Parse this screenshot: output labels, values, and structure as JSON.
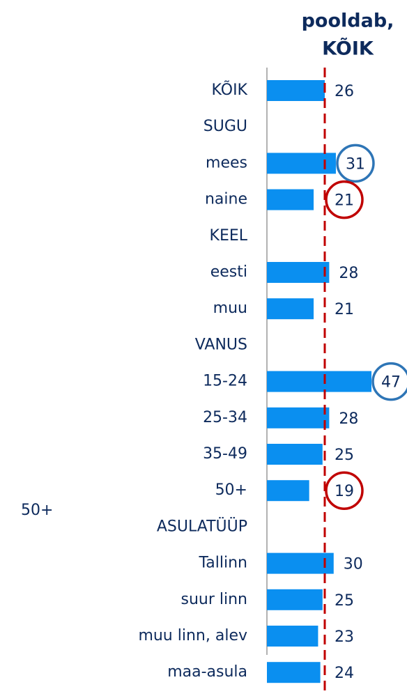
{
  "chart_data": {
    "type": "bar",
    "orientation": "horizontal",
    "title": [
      "pooldab,",
      "KÕIK"
    ],
    "categories": [
      "KÕIK",
      "SUGU",
      "mees",
      "naine",
      "KEEL",
      "eesti",
      "muu",
      "VANUS",
      "15-24",
      "25-34",
      "35-49",
      "50+",
      "ASULATÜÜP",
      "Tallinn",
      "suur linn",
      "muu linn, alev",
      "maa-asula"
    ],
    "values": [
      26,
      null,
      31,
      21,
      null,
      28,
      21,
      null,
      47,
      28,
      25,
      19,
      null,
      30,
      25,
      23,
      24
    ],
    "label_circles": [
      null,
      null,
      "#2e75b6",
      "#c00000",
      null,
      null,
      null,
      null,
      "#2e75b6",
      null,
      null,
      "#c00000",
      null,
      null,
      null,
      null,
      null
    ],
    "color": "#0a8ff0",
    "xlim": [
      0,
      50
    ],
    "reference_line": {
      "value": 26,
      "color": "#c00000",
      "dashed": true
    },
    "annotations": [
      "50+"
    ]
  }
}
